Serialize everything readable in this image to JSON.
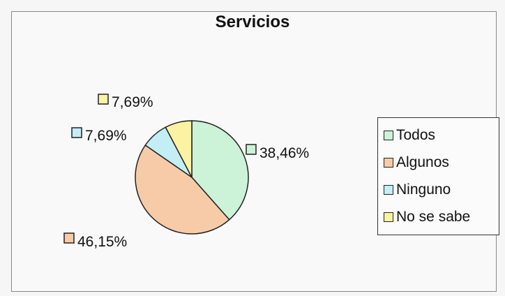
{
  "chart_data": {
    "type": "pie",
    "title": "Servicios",
    "categories": [
      "Todos",
      "Algunos",
      "Ninguno",
      "No se sabe"
    ],
    "values": [
      38.46,
      46.15,
      7.69,
      7.69
    ],
    "labels": [
      "38,46%",
      "46,15%",
      "7,69%",
      "7,69%"
    ],
    "colors": [
      "#ccf2d8",
      "#f8cba8",
      "#c4eef6",
      "#fcf2a4"
    ],
    "legend_position": "right"
  }
}
